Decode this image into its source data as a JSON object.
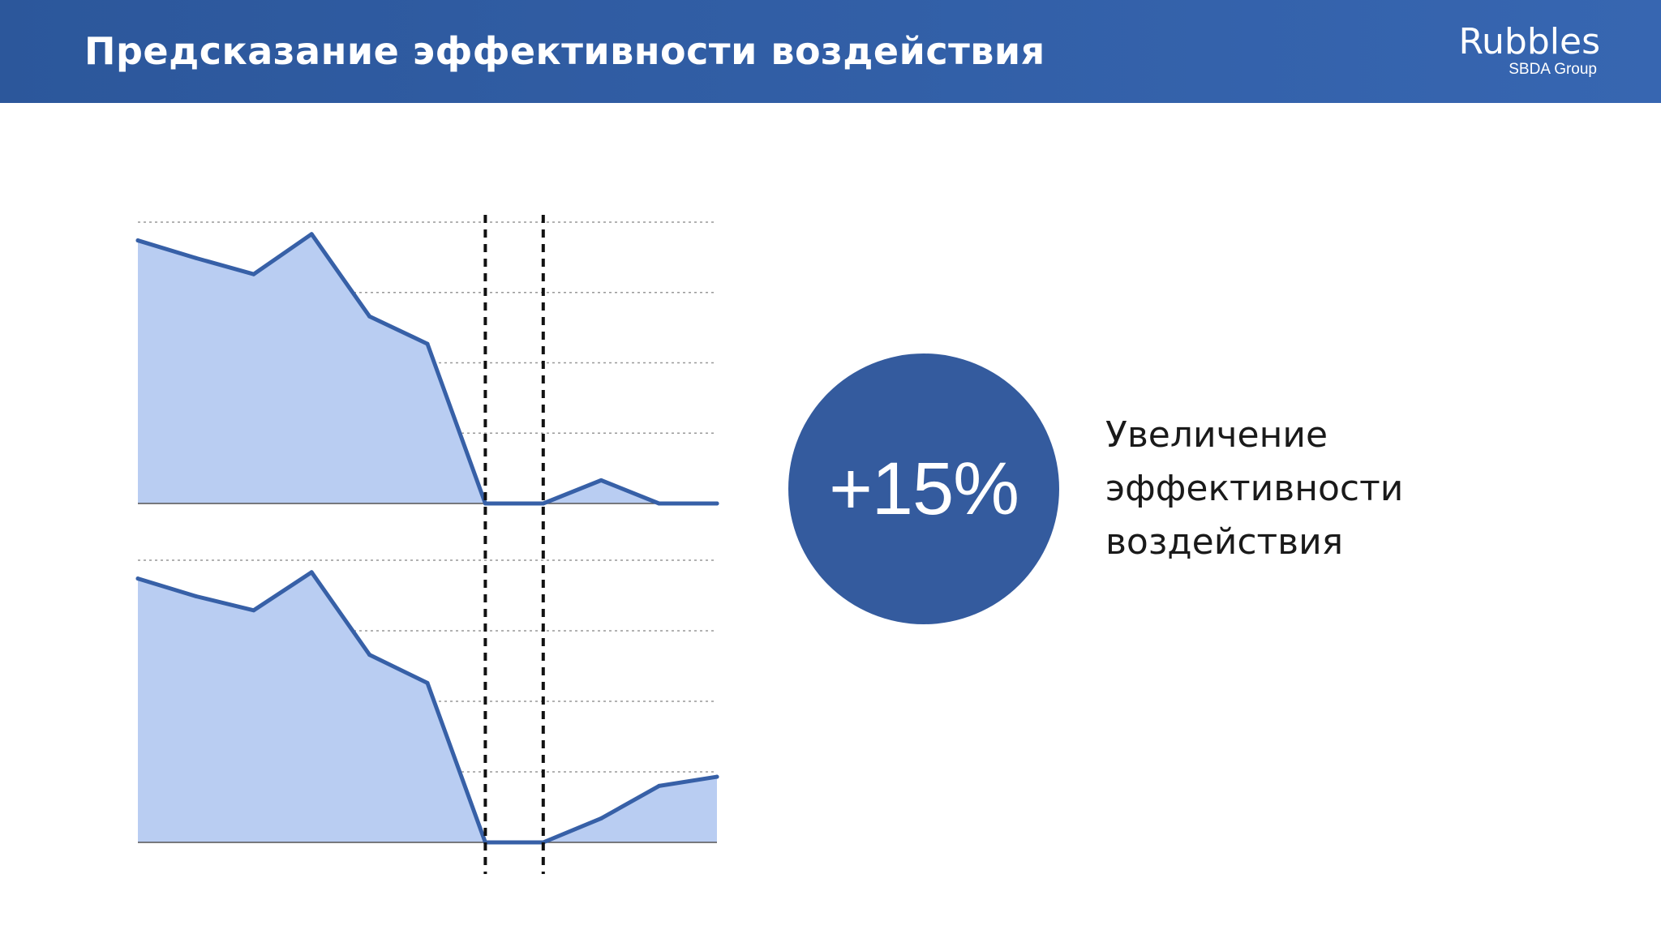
{
  "header": {
    "title": "Предсказание эффективности воздействия",
    "logo_name": "Rubbles",
    "logo_sub": "SBDA Group"
  },
  "colors": {
    "header": "#2f5da4",
    "line": "#3760a7",
    "fill": "#b9cdf2",
    "circle": "#345b9e",
    "grid": "#999999"
  },
  "kpi": {
    "value": "+15%",
    "caption_lines": [
      "Увеличение",
      "эффективности",
      "воздействия"
    ]
  },
  "chart_data": [
    {
      "type": "area",
      "x": [
        0,
        1,
        2,
        3,
        4,
        5,
        6,
        7,
        8,
        9,
        10
      ],
      "values": [
        3.74,
        3.49,
        3.26,
        3.83,
        2.66,
        2.27,
        0,
        0,
        0.33,
        0,
        0
      ],
      "ylim": [
        0,
        4
      ],
      "grid": true,
      "markers": [
        6,
        7
      ],
      "line_color": "#3760a7",
      "fill_color": "#b9cdf2"
    },
    {
      "type": "area",
      "x": [
        0,
        1,
        2,
        3,
        4,
        5,
        6,
        7,
        8,
        9,
        10
      ],
      "values": [
        3.74,
        3.49,
        3.29,
        3.83,
        2.66,
        2.26,
        0,
        0,
        0.34,
        0.8,
        0.93
      ],
      "ylim": [
        0,
        4
      ],
      "grid": true,
      "markers": [
        6,
        7
      ],
      "line_color": "#3760a7",
      "fill_color": "#b9cdf2"
    }
  ]
}
